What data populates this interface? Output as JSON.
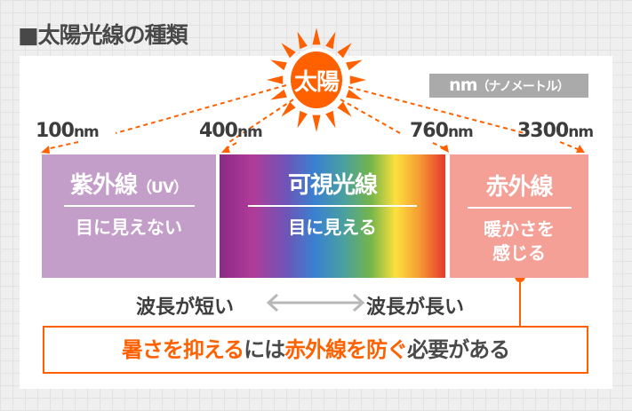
{
  "title": "■太陽光線の種類",
  "sun_label": "太陽",
  "unit": {
    "main": "nm",
    "note": "（ナノメートル）"
  },
  "wavelengths": [
    {
      "value": "100",
      "unit": "nm"
    },
    {
      "value": "400",
      "unit": "nm"
    },
    {
      "value": "760",
      "unit": "nm"
    },
    {
      "value": "3300",
      "unit": "nm"
    }
  ],
  "bands": [
    {
      "name": "紫外線",
      "suffix": "（UV）",
      "desc": "目に見えない",
      "color": "#c39ec8"
    },
    {
      "name": "可視光線",
      "desc": "目に見える"
    },
    {
      "name": "赤外線",
      "desc_lines": [
        "暖かさを",
        "感じる"
      ],
      "color": "#f4a097"
    }
  ],
  "scale": {
    "short": "波長が短い",
    "long": "波長が長い"
  },
  "message": {
    "p1": "暑さを抑える",
    "p2": "には",
    "p3": "赤外線を防ぐ",
    "p4": "必要がある"
  },
  "colors": {
    "accent": "#ff6000",
    "text": "#444444"
  }
}
